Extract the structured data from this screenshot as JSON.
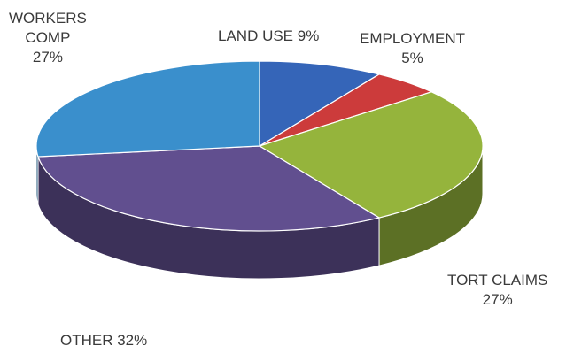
{
  "chart_data": {
    "type": "pie",
    "style": "3d",
    "slices": [
      {
        "name": "LAND USE",
        "value": 9,
        "label": "LAND USE 9%",
        "color": "#3565b8"
      },
      {
        "name": "EMPLOYMENT",
        "value": 5,
        "label_lines": [
          "EMPLOYMENT",
          "5%"
        ],
        "color": "#cc3b3b"
      },
      {
        "name": "TORT CLAIMS",
        "value": 27,
        "label_lines": [
          "TORT CLAIMS",
          "27%"
        ],
        "color": "#95b43c"
      },
      {
        "name": "OTHER",
        "value": 32,
        "label": "OTHER 32%",
        "color": "#614f8f"
      },
      {
        "name": "WORKERS COMP",
        "value": 27,
        "label_lines": [
          "WORKERS",
          "COMP",
          "27%"
        ],
        "color": "#3a8fcc"
      }
    ],
    "title": "",
    "legend": "none"
  }
}
